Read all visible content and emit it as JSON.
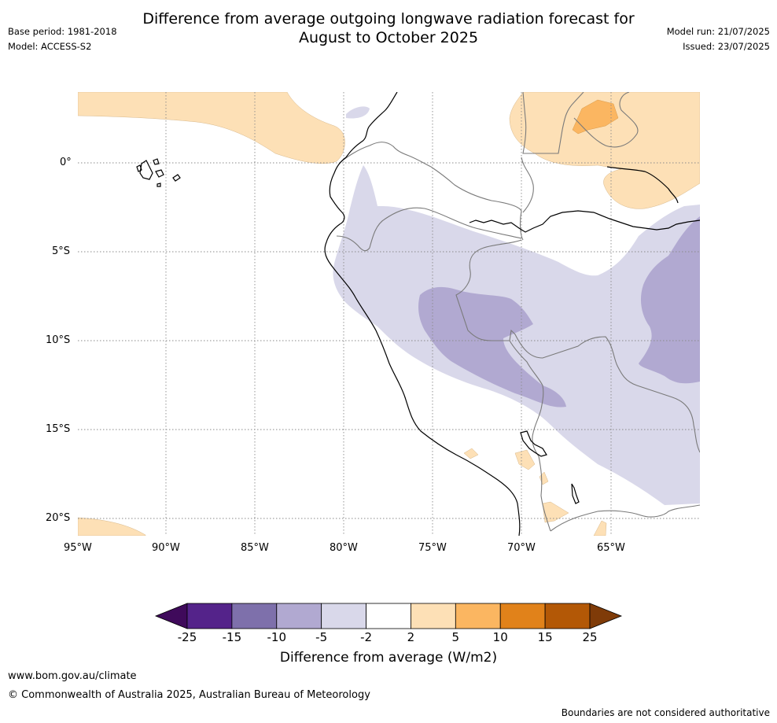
{
  "title_line1": "Difference from average outgoing longwave radiation forecast for",
  "title_line2": "August to October 2025",
  "base_period": "Base period: 1981-2018",
  "model": "Model: ACCESS-S2",
  "model_run": "Model run: 21/07/2025",
  "issued": "Issued: 23/07/2025",
  "lat_labels": [
    "0°",
    "5°S",
    "10°S",
    "15°S",
    "20°S"
  ],
  "lon_labels": [
    "95°W",
    "90°W",
    "85°W",
    "80°W",
    "75°W",
    "70°W",
    "65°W"
  ],
  "colorbar": {
    "ticks": [
      "-25",
      "-15",
      "-10",
      "-5",
      "-2",
      "2",
      "5",
      "10",
      "15",
      "25"
    ],
    "colors": [
      "#3f0a5b",
      "#54238a",
      "#7e70ab",
      "#b1a9d1",
      "#d9d8ea",
      "#ffffff",
      "#fde0b6",
      "#fbb661",
      "#e1821a",
      "#b35806",
      "#7f3b08"
    ],
    "label": "Difference from average (W/m2)"
  },
  "footer": {
    "url": "www.bom.gov.au/climate",
    "copyright": "© Commonwealth of Australia 2025, Australian Bureau of Meteorology",
    "disclaimer": "Boundaries are not considered authoritative"
  }
}
